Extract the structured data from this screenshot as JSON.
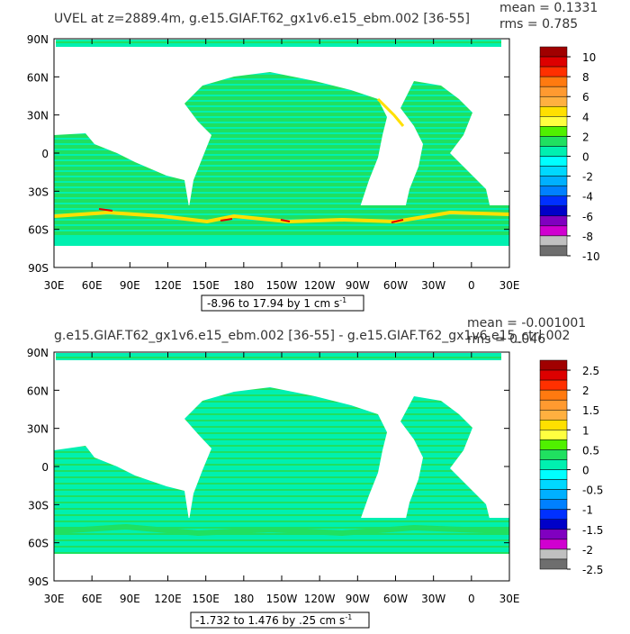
{
  "chart_data": [
    {
      "type": "heatmap",
      "title": "UVEL at z=2889.4m, g.e15.GIAF.T62_gx1v6.e15_ebm.002 [36-55]",
      "stats": {
        "mean": "mean = 0.1331",
        "rms": "rms = 0.785"
      },
      "range_label": "-8.96 to 17.94 by 1 cm s",
      "range_units_exp": "-1",
      "x_ticks": [
        "30E",
        "60E",
        "90E",
        "120E",
        "150E",
        "180",
        "150W",
        "120W",
        "90W",
        "60W",
        "30W",
        "0",
        "30E"
      ],
      "y_ticks": [
        "90N",
        "60N",
        "30N",
        "0",
        "30S",
        "60S",
        "90S"
      ],
      "ylim": [
        -90,
        90
      ],
      "colorbar_labels": [
        "10",
        "8",
        "6",
        "4",
        "2",
        "0",
        "-2",
        "-4",
        "-6",
        "-8",
        "-10"
      ],
      "colorbar_colors": [
        "#a00000",
        "#dd0000",
        "#ff3000",
        "#ff7a10",
        "#ff9a30",
        "#ffb040",
        "#ffe000",
        "#ffff40",
        "#50f000",
        "#20e060",
        "#00f0b0",
        "#00ffff",
        "#00d8ff",
        "#00b0ff",
        "#0080ff",
        "#0030ff",
        "#0000c8",
        "#8000c0",
        "#d000d0",
        "#c0c0c0",
        "#6e6e6e"
      ]
    },
    {
      "type": "heatmap",
      "title": "g.e15.GIAF.T62_gx1v6.e15_ebm.002 [36-55] - g.e15.GIAF.T62_gx1v6.e15_ctrl.002",
      "stats": {
        "mean": "mean = -0.001001",
        "rms": "rms = 0.046"
      },
      "range_label": "-1.732 to 1.476 by .25 cm s",
      "range_units_exp": "-1",
      "x_ticks": [
        "30E",
        "60E",
        "90E",
        "120E",
        "150E",
        "180",
        "150W",
        "120W",
        "90W",
        "60W",
        "30W",
        "0",
        "30E"
      ],
      "y_ticks": [
        "90N",
        "60N",
        "30N",
        "0",
        "30S",
        "60S",
        "90S"
      ],
      "ylim": [
        -90,
        90
      ],
      "colorbar_labels": [
        "2.5",
        "2",
        "1.5",
        "1",
        "0.5",
        "0",
        "-0.5",
        "-1",
        "-1.5",
        "-2",
        "-2.5"
      ],
      "colorbar_colors": [
        "#a00000",
        "#dd0000",
        "#ff3000",
        "#ff7a10",
        "#ff9a30",
        "#ffb040",
        "#ffe000",
        "#ffff40",
        "#50f000",
        "#20e060",
        "#00f0b0",
        "#00ffff",
        "#00d8ff",
        "#00b0ff",
        "#0080ff",
        "#0030ff",
        "#0000c8",
        "#8000c0",
        "#d000d0",
        "#c0c0c0",
        "#6e6e6e"
      ]
    }
  ],
  "colors": {
    "ocean_main": "#20e060",
    "ocean_cyan": "#00f0b0",
    "land": "#ffffff",
    "strong_pos": "#ffe000",
    "strong_neg": "#dd0000"
  }
}
